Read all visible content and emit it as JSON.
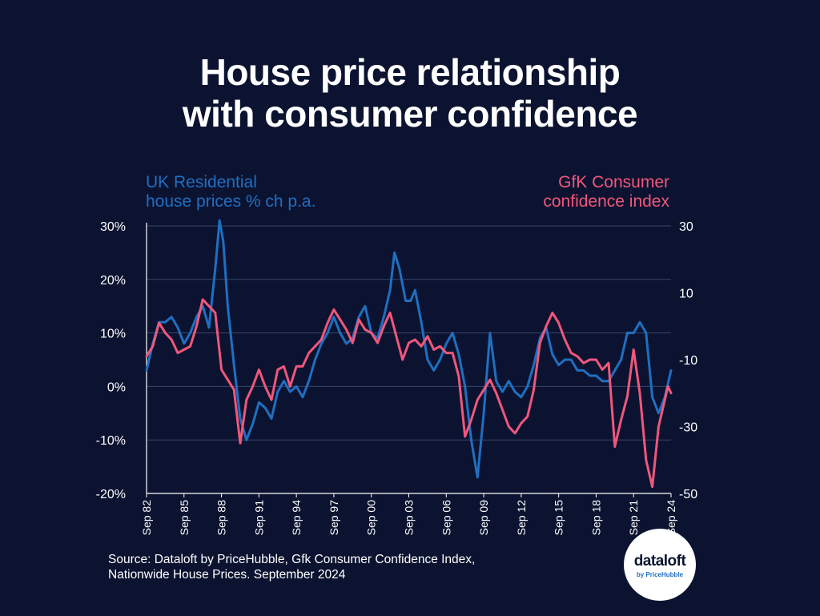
{
  "title": [
    "House price relationship",
    "with consumer confidence"
  ],
  "left_axis_title": [
    "UK Residential",
    "house prices % ch p.a."
  ],
  "right_axis_title": [
    "GfK Consumer",
    "confidence index"
  ],
  "source": [
    "Source: Dataloft by PriceHubble, Gfk Consumer Confidence Index,",
    "Nationwide House Prices. September 2024"
  ],
  "logo": {
    "name": "dataloft",
    "sub": "by PriceHubble"
  },
  "colors": {
    "background": "#0b1331",
    "house_prices": "#1f6fc1",
    "consumer_confidence": "#f0577a",
    "axis": "#ffffff",
    "grid": "#3a4466"
  },
  "chart_data": {
    "type": "line",
    "x_range": [
      1982.75,
      2024.75
    ],
    "x_ticks": [
      {
        "x": 1982.75,
        "label": "Sep 82"
      },
      {
        "x": 1985.75,
        "label": "Sep 85"
      },
      {
        "x": 1988.75,
        "label": "Sep 88"
      },
      {
        "x": 1991.75,
        "label": "Sep 91"
      },
      {
        "x": 1994.75,
        "label": "Sep 94"
      },
      {
        "x": 1997.75,
        "label": "Sep 97"
      },
      {
        "x": 2000.75,
        "label": "Sep 00"
      },
      {
        "x": 2003.75,
        "label": "Sep 03"
      },
      {
        "x": 2006.75,
        "label": "Sep 06"
      },
      {
        "x": 2009.75,
        "label": "Sep 09"
      },
      {
        "x": 2012.75,
        "label": "Sep 12"
      },
      {
        "x": 2015.75,
        "label": "Sep 15"
      },
      {
        "x": 2018.75,
        "label": "Sep 18"
      },
      {
        "x": 2021.75,
        "label": "Sep 21"
      },
      {
        "x": 2024.75,
        "label": "Sep 24"
      }
    ],
    "left_axis": {
      "ylim": [
        -20,
        30
      ],
      "ticks": [
        30,
        20,
        10,
        0,
        -10,
        -20
      ],
      "tick_labels": [
        "30%",
        "20%",
        "10%",
        "0%",
        "-10%",
        "-20%"
      ]
    },
    "right_axis": {
      "ylim": [
        -50,
        30
      ],
      "ticks": [
        30,
        10,
        -10,
        -30,
        -50
      ],
      "tick_labels": [
        "30",
        "10",
        "-10",
        "-30",
        "-50"
      ]
    },
    "grid": true,
    "series": [
      {
        "axis": "left",
        "color": "#1f6fc1",
        "points": [
          [
            1982.75,
            3
          ],
          [
            1983.25,
            8
          ],
          [
            1983.75,
            12
          ],
          [
            1984.25,
            12
          ],
          [
            1984.75,
            13
          ],
          [
            1985.25,
            11
          ],
          [
            1985.75,
            8
          ],
          [
            1986.25,
            10
          ],
          [
            1986.75,
            13
          ],
          [
            1987.25,
            15
          ],
          [
            1987.75,
            11
          ],
          [
            1988.25,
            22
          ],
          [
            1988.6,
            31
          ],
          [
            1988.9,
            27
          ],
          [
            1989.25,
            15
          ],
          [
            1989.75,
            4
          ],
          [
            1990.25,
            -6
          ],
          [
            1990.75,
            -10
          ],
          [
            1991.25,
            -7
          ],
          [
            1991.75,
            -3
          ],
          [
            1992.25,
            -4
          ],
          [
            1992.75,
            -6
          ],
          [
            1993.25,
            -1
          ],
          [
            1993.75,
            1
          ],
          [
            1994.25,
            -1
          ],
          [
            1994.75,
            0
          ],
          [
            1995.25,
            -2
          ],
          [
            1995.75,
            1
          ],
          [
            1996.25,
            5
          ],
          [
            1996.75,
            8
          ],
          [
            1997.25,
            10
          ],
          [
            1997.75,
            13
          ],
          [
            1998.25,
            10
          ],
          [
            1998.75,
            8
          ],
          [
            1999.25,
            9
          ],
          [
            1999.75,
            13
          ],
          [
            2000.25,
            15
          ],
          [
            2000.75,
            10
          ],
          [
            2001.25,
            9
          ],
          [
            2001.75,
            13
          ],
          [
            2002.25,
            18
          ],
          [
            2002.6,
            25
          ],
          [
            2003.0,
            22
          ],
          [
            2003.5,
            16
          ],
          [
            2003.9,
            16
          ],
          [
            2004.25,
            18
          ],
          [
            2004.75,
            12
          ],
          [
            2005.25,
            5
          ],
          [
            2005.75,
            3
          ],
          [
            2006.25,
            5
          ],
          [
            2006.75,
            8
          ],
          [
            2007.25,
            10
          ],
          [
            2007.75,
            6
          ],
          [
            2008.25,
            0
          ],
          [
            2008.75,
            -10
          ],
          [
            2009.25,
            -17
          ],
          [
            2009.75,
            -5
          ],
          [
            2010.25,
            10
          ],
          [
            2010.75,
            1
          ],
          [
            2011.25,
            -1
          ],
          [
            2011.75,
            1
          ],
          [
            2012.25,
            -1
          ],
          [
            2012.75,
            -2
          ],
          [
            2013.25,
            0
          ],
          [
            2013.75,
            4
          ],
          [
            2014.25,
            9
          ],
          [
            2014.75,
            11
          ],
          [
            2015.25,
            6
          ],
          [
            2015.75,
            4
          ],
          [
            2016.25,
            5
          ],
          [
            2016.75,
            5
          ],
          [
            2017.25,
            3
          ],
          [
            2017.75,
            3
          ],
          [
            2018.25,
            2
          ],
          [
            2018.75,
            2
          ],
          [
            2019.25,
            1
          ],
          [
            2019.75,
            1
          ],
          [
            2020.25,
            3
          ],
          [
            2020.75,
            5
          ],
          [
            2021.25,
            10
          ],
          [
            2021.75,
            10
          ],
          [
            2022.25,
            12
          ],
          [
            2022.75,
            10
          ],
          [
            2023.25,
            -2
          ],
          [
            2023.75,
            -5
          ],
          [
            2024.25,
            -2
          ],
          [
            2024.75,
            3
          ]
        ]
      },
      {
        "axis": "right",
        "color": "#f0577a",
        "points": [
          [
            1982.75,
            -9
          ],
          [
            1983.25,
            -6
          ],
          [
            1983.75,
            1
          ],
          [
            1984.25,
            -2
          ],
          [
            1984.75,
            -4
          ],
          [
            1985.25,
            -8
          ],
          [
            1985.75,
            -7
          ],
          [
            1986.25,
            -6
          ],
          [
            1986.75,
            0
          ],
          [
            1987.25,
            8
          ],
          [
            1987.75,
            6
          ],
          [
            1988.25,
            4
          ],
          [
            1988.75,
            -13
          ],
          [
            1989.25,
            -16
          ],
          [
            1989.75,
            -19
          ],
          [
            1990.25,
            -35
          ],
          [
            1990.75,
            -22
          ],
          [
            1991.25,
            -18
          ],
          [
            1991.75,
            -13
          ],
          [
            1992.25,
            -18
          ],
          [
            1992.75,
            -22
          ],
          [
            1993.25,
            -13
          ],
          [
            1993.75,
            -12
          ],
          [
            1994.25,
            -18
          ],
          [
            1994.75,
            -12
          ],
          [
            1995.25,
            -12
          ],
          [
            1995.75,
            -8
          ],
          [
            1996.25,
            -6
          ],
          [
            1996.75,
            -4
          ],
          [
            1997.25,
            1
          ],
          [
            1997.75,
            5
          ],
          [
            1998.25,
            2
          ],
          [
            1998.75,
            -1
          ],
          [
            1999.25,
            -5
          ],
          [
            1999.75,
            2
          ],
          [
            2000.25,
            -1
          ],
          [
            2000.75,
            -2
          ],
          [
            2001.25,
            -5
          ],
          [
            2001.75,
            0
          ],
          [
            2002.25,
            4
          ],
          [
            2002.75,
            -3
          ],
          [
            2003.25,
            -10
          ],
          [
            2003.75,
            -5
          ],
          [
            2004.25,
            -4
          ],
          [
            2004.75,
            -6
          ],
          [
            2005.25,
            -3
          ],
          [
            2005.75,
            -7
          ],
          [
            2006.25,
            -6
          ],
          [
            2006.75,
            -8
          ],
          [
            2007.25,
            -8
          ],
          [
            2007.75,
            -15
          ],
          [
            2008.25,
            -33
          ],
          [
            2008.75,
            -28
          ],
          [
            2009.25,
            -22
          ],
          [
            2009.75,
            -19
          ],
          [
            2010.25,
            -16
          ],
          [
            2010.75,
            -20
          ],
          [
            2011.25,
            -25
          ],
          [
            2011.75,
            -30
          ],
          [
            2012.25,
            -32
          ],
          [
            2012.75,
            -29
          ],
          [
            2013.25,
            -27
          ],
          [
            2013.75,
            -19
          ],
          [
            2014.25,
            -5
          ],
          [
            2014.75,
            0
          ],
          [
            2015.25,
            4
          ],
          [
            2015.75,
            1
          ],
          [
            2016.25,
            -4
          ],
          [
            2016.75,
            -8
          ],
          [
            2017.25,
            -9
          ],
          [
            2017.75,
            -11
          ],
          [
            2018.25,
            -10
          ],
          [
            2018.75,
            -10
          ],
          [
            2019.25,
            -13
          ],
          [
            2019.75,
            -11
          ],
          [
            2020.25,
            -36
          ],
          [
            2020.75,
            -28
          ],
          [
            2021.25,
            -21
          ],
          [
            2021.75,
            -7
          ],
          [
            2022.25,
            -20
          ],
          [
            2022.75,
            -40
          ],
          [
            2023.25,
            -48
          ],
          [
            2023.75,
            -30
          ],
          [
            2024.25,
            -22
          ],
          [
            2024.5,
            -18
          ],
          [
            2024.75,
            -20
          ]
        ]
      }
    ]
  }
}
